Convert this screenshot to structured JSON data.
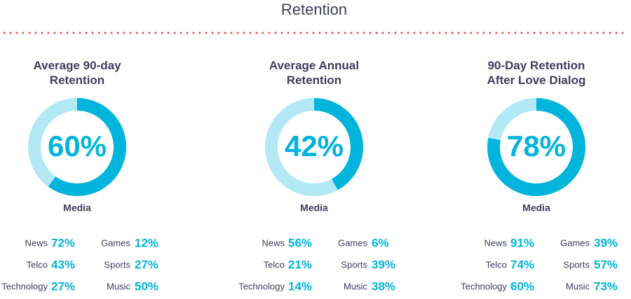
{
  "title": "Retention",
  "chart_data": [
    {
      "type": "donut",
      "title": "Average 90-day Retention",
      "value": 60,
      "value_label": "60%",
      "label": "Media",
      "color": "#00b4dc",
      "track_color": "#b3e9f5",
      "breakdown": {
        "categories": [
          "News",
          "Telco",
          "Technology",
          "Games",
          "Sports",
          "Music"
        ],
        "values": [
          72,
          43,
          27,
          12,
          27,
          50
        ],
        "value_labels": [
          "72%",
          "43%",
          "27%",
          "12%",
          "27%",
          "50%"
        ]
      }
    },
    {
      "type": "donut",
      "title": "Average Annual Retention",
      "value": 42,
      "value_label": "42%",
      "label": "Media",
      "color": "#00b4dc",
      "track_color": "#b3e9f5",
      "breakdown": {
        "categories": [
          "News",
          "Telco",
          "Technology",
          "Games",
          "Sports",
          "Music"
        ],
        "values": [
          56,
          21,
          14,
          6,
          39,
          38
        ],
        "value_labels": [
          "56%",
          "21%",
          "14%",
          "6%",
          "39%",
          "38%"
        ]
      }
    },
    {
      "type": "donut",
      "title": "90-Day Retention After Love Dialog",
      "value": 78,
      "value_label": "78%",
      "label": "Media",
      "color": "#00b4dc",
      "track_color": "#b3e9f5",
      "breakdown": {
        "categories": [
          "News",
          "Telco",
          "Technology",
          "Games",
          "Sports",
          "Music"
        ],
        "values": [
          91,
          74,
          60,
          39,
          57,
          73
        ],
        "value_labels": [
          "91%",
          "74%",
          "60%",
          "39%",
          "57%",
          "73%"
        ]
      }
    }
  ]
}
